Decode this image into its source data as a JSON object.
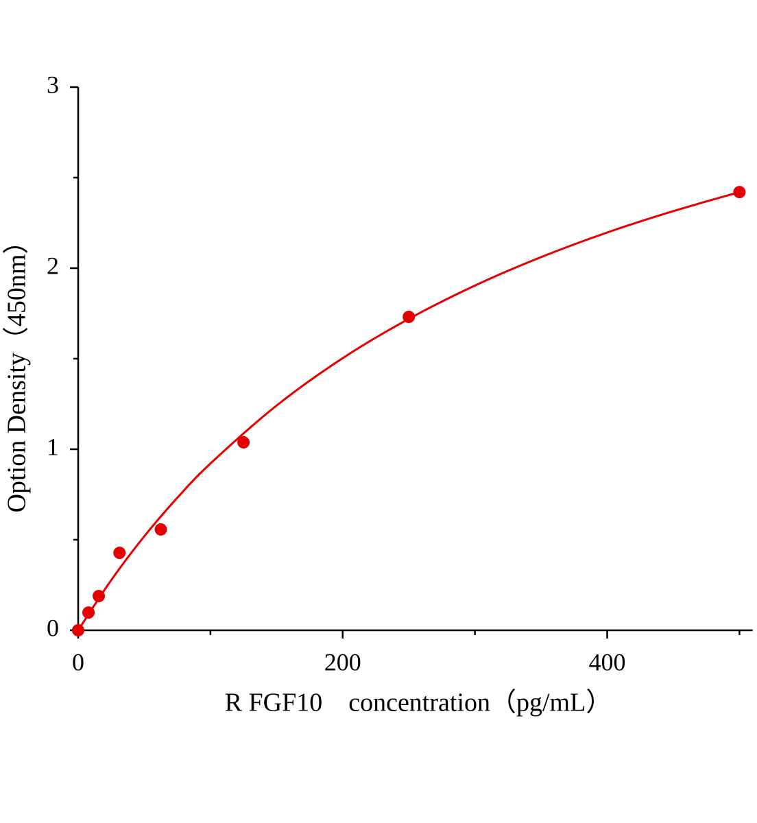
{
  "chart_data": {
    "type": "scatter",
    "x_label": "R FGF10　concentration（pg/mL）",
    "y_label": "Option Density（450nm）",
    "xlim": [
      0,
      510
    ],
    "ylim": [
      0,
      3
    ],
    "xticks": [
      0,
      200,
      400
    ],
    "yticks": [
      0,
      1,
      2,
      3
    ],
    "x_minor_ticks": [
      100,
      300,
      500
    ],
    "y_minor_ticks": [
      0.5,
      1.5,
      2.5
    ],
    "color": "#e50000",
    "series": [
      {
        "x": [
          0,
          7.8,
          15.6,
          31.25,
          62.5,
          125,
          250,
          500
        ],
        "values": [
          0,
          0.098,
          0.189,
          0.428,
          0.557,
          1.038,
          1.731,
          2.42
        ]
      }
    ],
    "fit": {
      "x": [
        0,
        25,
        50,
        75,
        100,
        150,
        200,
        250,
        300,
        350,
        400,
        450,
        500
      ],
      "values": [
        0,
        0.277,
        0.519,
        0.732,
        0.921,
        1.241,
        1.503,
        1.72,
        1.904,
        2.061,
        2.197,
        2.315,
        2.42
      ]
    }
  }
}
